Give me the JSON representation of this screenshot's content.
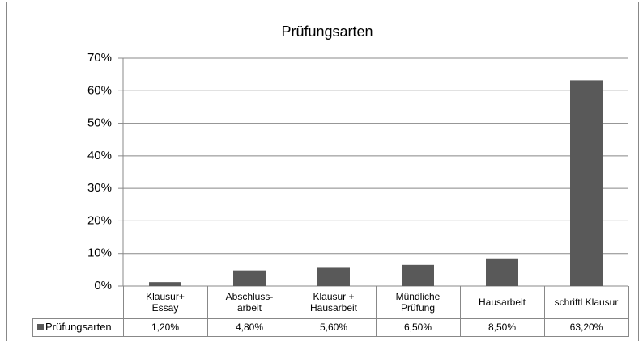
{
  "chart_data": {
    "type": "bar",
    "title": "Prüfungsarten",
    "categories": [
      "Klausur+\nEssay",
      "Abschluss-\narbeit",
      "Klausur +\nHausarbeit",
      "Mündliche\nPrüfung",
      "Hausarbeit",
      "schriftl Klausur"
    ],
    "series": [
      {
        "name": "Prüfungsarten",
        "color": "#595959",
        "values": [
          1.2,
          4.8,
          5.6,
          6.5,
          8.5,
          63.2
        ],
        "value_labels": [
          "1,20%",
          "4,80%",
          "5,60%",
          "6,50%",
          "8,50%",
          "63,20%"
        ]
      }
    ],
    "ylim": [
      0,
      70
    ],
    "yticks": [
      {
        "value": 0,
        "label": "0%"
      },
      {
        "value": 10,
        "label": "10%"
      },
      {
        "value": 20,
        "label": "20%"
      },
      {
        "value": 30,
        "label": "30%"
      },
      {
        "value": 40,
        "label": "40%"
      },
      {
        "value": 50,
        "label": "50%"
      },
      {
        "value": 60,
        "label": "60%"
      },
      {
        "value": 70,
        "label": "70%"
      }
    ],
    "grid": true
  }
}
